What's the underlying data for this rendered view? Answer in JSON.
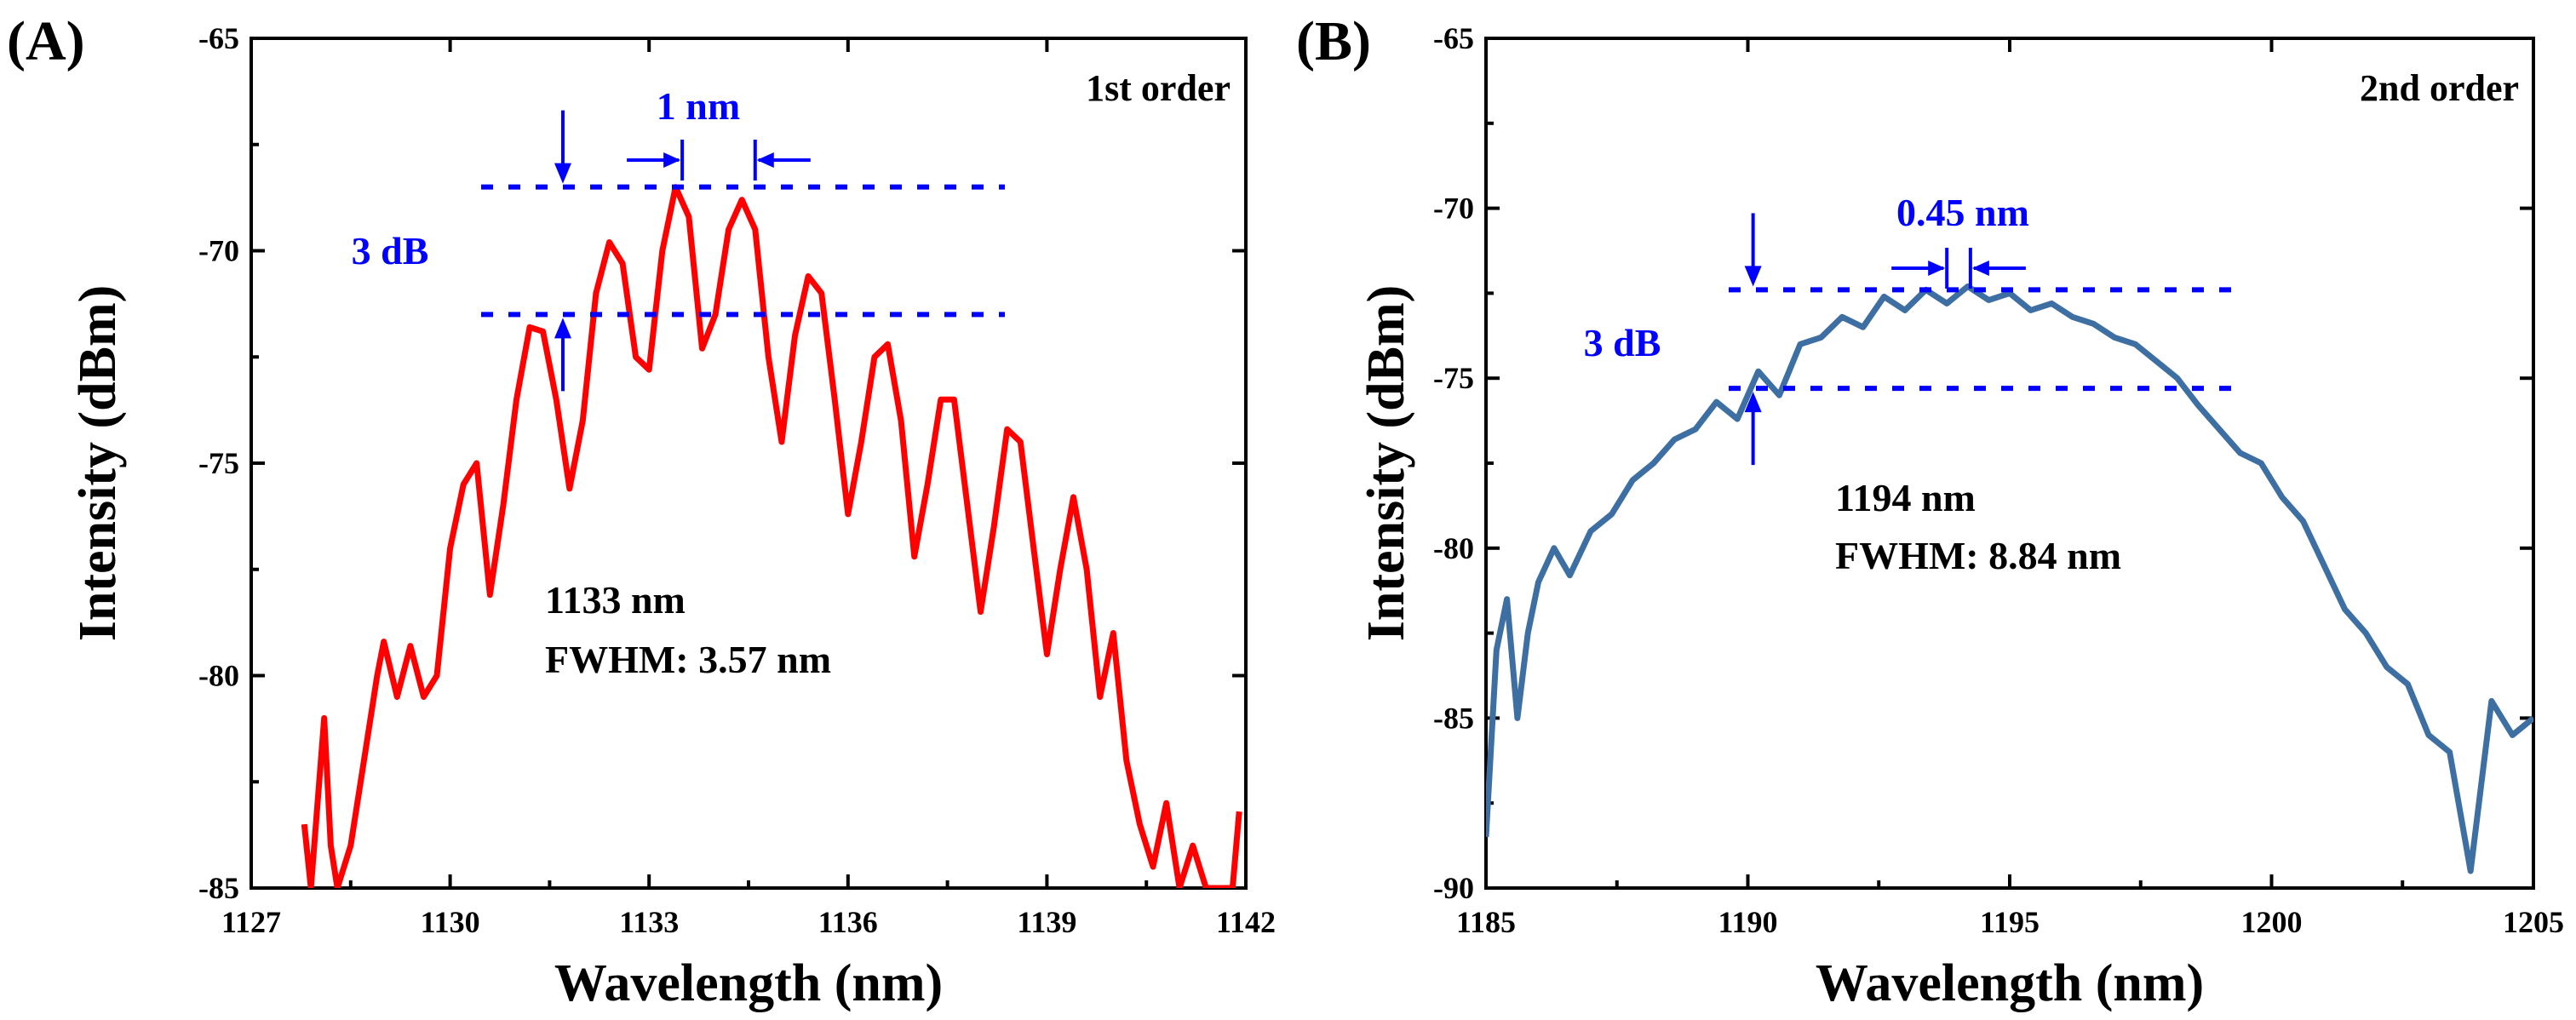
{
  "chart_data": [
    {
      "panel_label": "(A)",
      "type": "line",
      "order_label": "1st order",
      "xlabel": "Wavelength (nm)",
      "ylabel": "Intensity (dBm)",
      "xlim": [
        1127,
        1142
      ],
      "ylim": [
        -85,
        -65
      ],
      "xticks": [
        1127,
        1130,
        1133,
        1136,
        1139,
        1142
      ],
      "yticks": [
        -85,
        -80,
        -75,
        -70,
        -65
      ],
      "line_color": "#ff0000",
      "annotation_color": "#0000ff",
      "center_label": "1133 nm",
      "fwhm_label": "FWHM: 3.57 nm",
      "spacing_label": "1 nm",
      "db_label": "3 dB",
      "dashed_levels": [
        -68.5,
        -71.5
      ],
      "spacing_markers": [
        1133.5,
        1134.6
      ],
      "db_arrow_x": 1131.7,
      "series": [
        {
          "x": [
            1127.8,
            1127.9,
            1128.0,
            1128.1,
            1128.2,
            1128.3,
            1128.5,
            1128.7,
            1128.9,
            1129.0,
            1129.2,
            1129.4,
            1129.6,
            1129.8,
            1130.0,
            1130.2,
            1130.4,
            1130.6,
            1130.8,
            1131.0,
            1131.2,
            1131.4,
            1131.6,
            1131.8,
            1132.0,
            1132.2,
            1132.4,
            1132.6,
            1132.8,
            1133.0,
            1133.2,
            1133.4,
            1133.6,
            1133.8,
            1134.0,
            1134.2,
            1134.4,
            1134.6,
            1134.8,
            1135.0,
            1135.2,
            1135.4,
            1135.6,
            1135.8,
            1136.0,
            1136.2,
            1136.4,
            1136.6,
            1136.8,
            1137.0,
            1137.2,
            1137.4,
            1137.6,
            1137.8,
            1138.0,
            1138.2,
            1138.4,
            1138.6,
            1138.8,
            1139.0,
            1139.2,
            1139.4,
            1139.6,
            1139.8,
            1140.0,
            1140.2,
            1140.4,
            1140.6,
            1140.8,
            1141.0,
            1141.2,
            1141.4,
            1141.6,
            1141.8,
            1141.9
          ],
          "y": [
            -83.5,
            -85,
            -83,
            -81,
            -84,
            -85,
            -84,
            -82,
            -80,
            -79.2,
            -80.5,
            -79.3,
            -80.5,
            -80,
            -77,
            -75.5,
            -75.0,
            -78.1,
            -76.0,
            -73.5,
            -71.8,
            -71.9,
            -73.5,
            -75.6,
            -74.0,
            -71.0,
            -69.8,
            -70.3,
            -72.5,
            -72.8,
            -70.0,
            -68.5,
            -69.2,
            -72.3,
            -71.5,
            -69.5,
            -68.8,
            -69.5,
            -72.5,
            -74.5,
            -72.0,
            -70.6,
            -71.0,
            -73.5,
            -76.2,
            -74.5,
            -72.5,
            -72.2,
            -74.0,
            -77.2,
            -75.5,
            -73.5,
            -73.5,
            -76.0,
            -78.5,
            -76.5,
            -74.2,
            -74.5,
            -77.0,
            -79.5,
            -77.5,
            -75.8,
            -77.5,
            -80.5,
            -79.0,
            -82.0,
            -83.5,
            -84.5,
            -83.0,
            -85.0,
            -84.0,
            -85.0,
            -85.0,
            -85.0,
            -83.2
          ]
        }
      ]
    },
    {
      "panel_label": "(B)",
      "type": "line",
      "order_label": "2nd order",
      "xlabel": "Wavelength (nm)",
      "ylabel": "Intensity (dBm)",
      "xlim": [
        1185,
        1205
      ],
      "ylim": [
        -90,
        -65
      ],
      "xticks": [
        1185,
        1190,
        1195,
        1200,
        1205
      ],
      "yticks": [
        -90,
        -85,
        -80,
        -75,
        -70,
        -65
      ],
      "line_color": "#3e6fa3",
      "annotation_color": "#0000ff",
      "center_label": "1194 nm",
      "fwhm_label": "FWHM: 8.84 nm",
      "spacing_label": "0.45 nm",
      "db_label": "3 dB",
      "dashed_levels": [
        -72.4,
        -75.3
      ],
      "spacing_markers": [
        1193.8,
        1194.25
      ],
      "db_arrow_x": 1190.1,
      "series": [
        {
          "x": [
            1185.0,
            1185.2,
            1185.4,
            1185.6,
            1185.8,
            1186.0,
            1186.3,
            1186.6,
            1187.0,
            1187.4,
            1187.8,
            1188.2,
            1188.6,
            1189.0,
            1189.4,
            1189.8,
            1190.2,
            1190.6,
            1191.0,
            1191.4,
            1191.8,
            1192.2,
            1192.6,
            1193.0,
            1193.4,
            1193.8,
            1194.2,
            1194.6,
            1195.0,
            1195.4,
            1195.8,
            1196.2,
            1196.6,
            1197.0,
            1197.4,
            1197.8,
            1198.2,
            1198.6,
            1199.0,
            1199.4,
            1199.8,
            1200.2,
            1200.6,
            1201.0,
            1201.4,
            1201.8,
            1202.2,
            1202.6,
            1203.0,
            1203.4,
            1203.8,
            1204.2,
            1204.6,
            1205.0
          ],
          "y": [
            -88.5,
            -83.0,
            -81.5,
            -85.0,
            -82.5,
            -81.0,
            -80.0,
            -80.8,
            -79.5,
            -79.0,
            -78.0,
            -77.5,
            -76.8,
            -76.5,
            -75.7,
            -76.2,
            -74.8,
            -75.5,
            -74.0,
            -73.8,
            -73.2,
            -73.5,
            -72.6,
            -73.0,
            -72.4,
            -72.8,
            -72.3,
            -72.7,
            -72.5,
            -73.0,
            -72.8,
            -73.2,
            -73.4,
            -73.8,
            -74.0,
            -74.5,
            -75.0,
            -75.8,
            -76.5,
            -77.2,
            -77.5,
            -78.5,
            -79.2,
            -80.5,
            -81.8,
            -82.5,
            -83.5,
            -84.0,
            -85.5,
            -86.0,
            -89.5,
            -84.5,
            -85.5,
            -85.0
          ]
        }
      ]
    }
  ]
}
